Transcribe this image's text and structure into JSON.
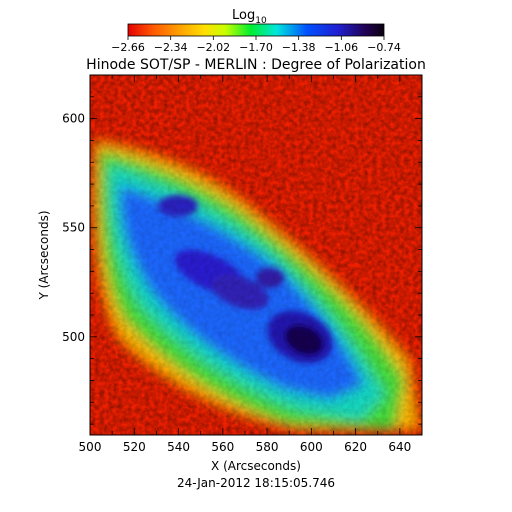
{
  "chart_data": {
    "type": "heatmap",
    "title": "Hinode SOT/SP - MERLIN : Degree of Polarization",
    "colorbar": {
      "label_main": "Log",
      "label_sub": "10",
      "ticks": [
        "-2.66",
        "-2.34",
        "-2.02",
        "-1.70",
        "-1.38",
        "-1.06",
        "-0.74"
      ],
      "range": [
        -2.66,
        -0.74
      ],
      "colors": [
        "#e60000",
        "#ff5a00",
        "#ffa000",
        "#ffe000",
        "#c8ff00",
        "#00ee30",
        "#00e6dc",
        "#0050ff",
        "#2020d0",
        "#200050",
        "#0a0010"
      ]
    },
    "xlabel": "X (Arcseconds)",
    "ylabel": "Y (Arcseconds)",
    "xlim": [
      500,
      650
    ],
    "ylim": [
      455,
      620
    ],
    "xticks": [
      "500",
      "520",
      "540",
      "560",
      "580",
      "600",
      "620",
      "640"
    ],
    "yticks": [
      "500",
      "550",
      "600"
    ],
    "timestamp": "24-Jan-2012 18:15:05.746"
  }
}
